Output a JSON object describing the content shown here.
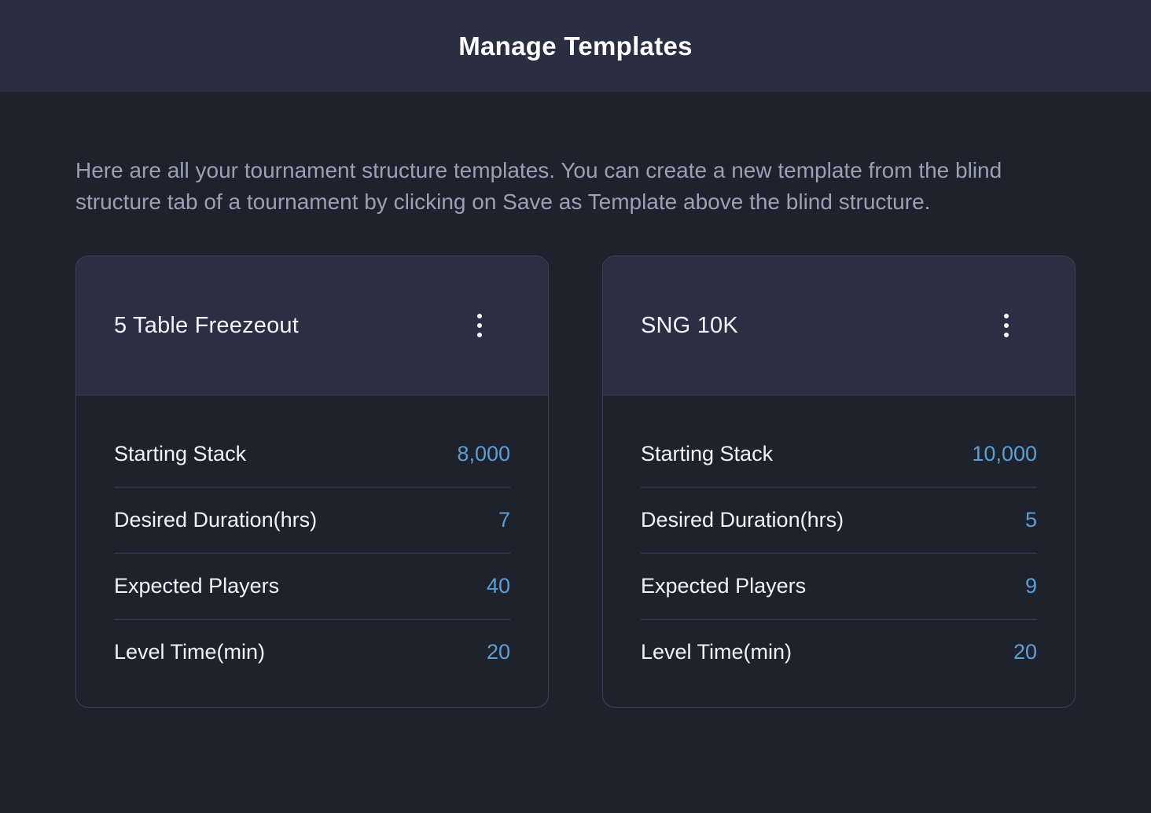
{
  "page": {
    "title": "Manage Templates",
    "description": "Here are all your tournament structure templates. You can create a new template from the blind structure tab of a tournament by clicking on Save as Template above the blind structure."
  },
  "colors": {
    "topbar_bg": "#292e41",
    "page_bg": "#1e222d",
    "card_header_bg": "#2a2f44",
    "card_border": "#3a4157",
    "divider": "#3b4359",
    "value_accent": "#5d9fd2",
    "description_text": "#99a1b5",
    "label_text": "#f2f3f6",
    "title_text": "#ffffff"
  },
  "icons": {
    "card_menu": "kebab-menu-icon"
  },
  "templates": [
    {
      "name": "5 Table Freezeout",
      "fields": [
        {
          "label": "Starting Stack",
          "value": "8,000"
        },
        {
          "label": "Desired Duration(hrs)",
          "value": "7"
        },
        {
          "label": "Expected Players",
          "value": "40"
        },
        {
          "label": "Level Time(min)",
          "value": "20"
        }
      ]
    },
    {
      "name": "SNG 10K",
      "fields": [
        {
          "label": "Starting Stack",
          "value": "10,000"
        },
        {
          "label": "Desired Duration(hrs)",
          "value": "5"
        },
        {
          "label": "Expected Players",
          "value": "9"
        },
        {
          "label": "Level Time(min)",
          "value": "20"
        }
      ]
    }
  ]
}
